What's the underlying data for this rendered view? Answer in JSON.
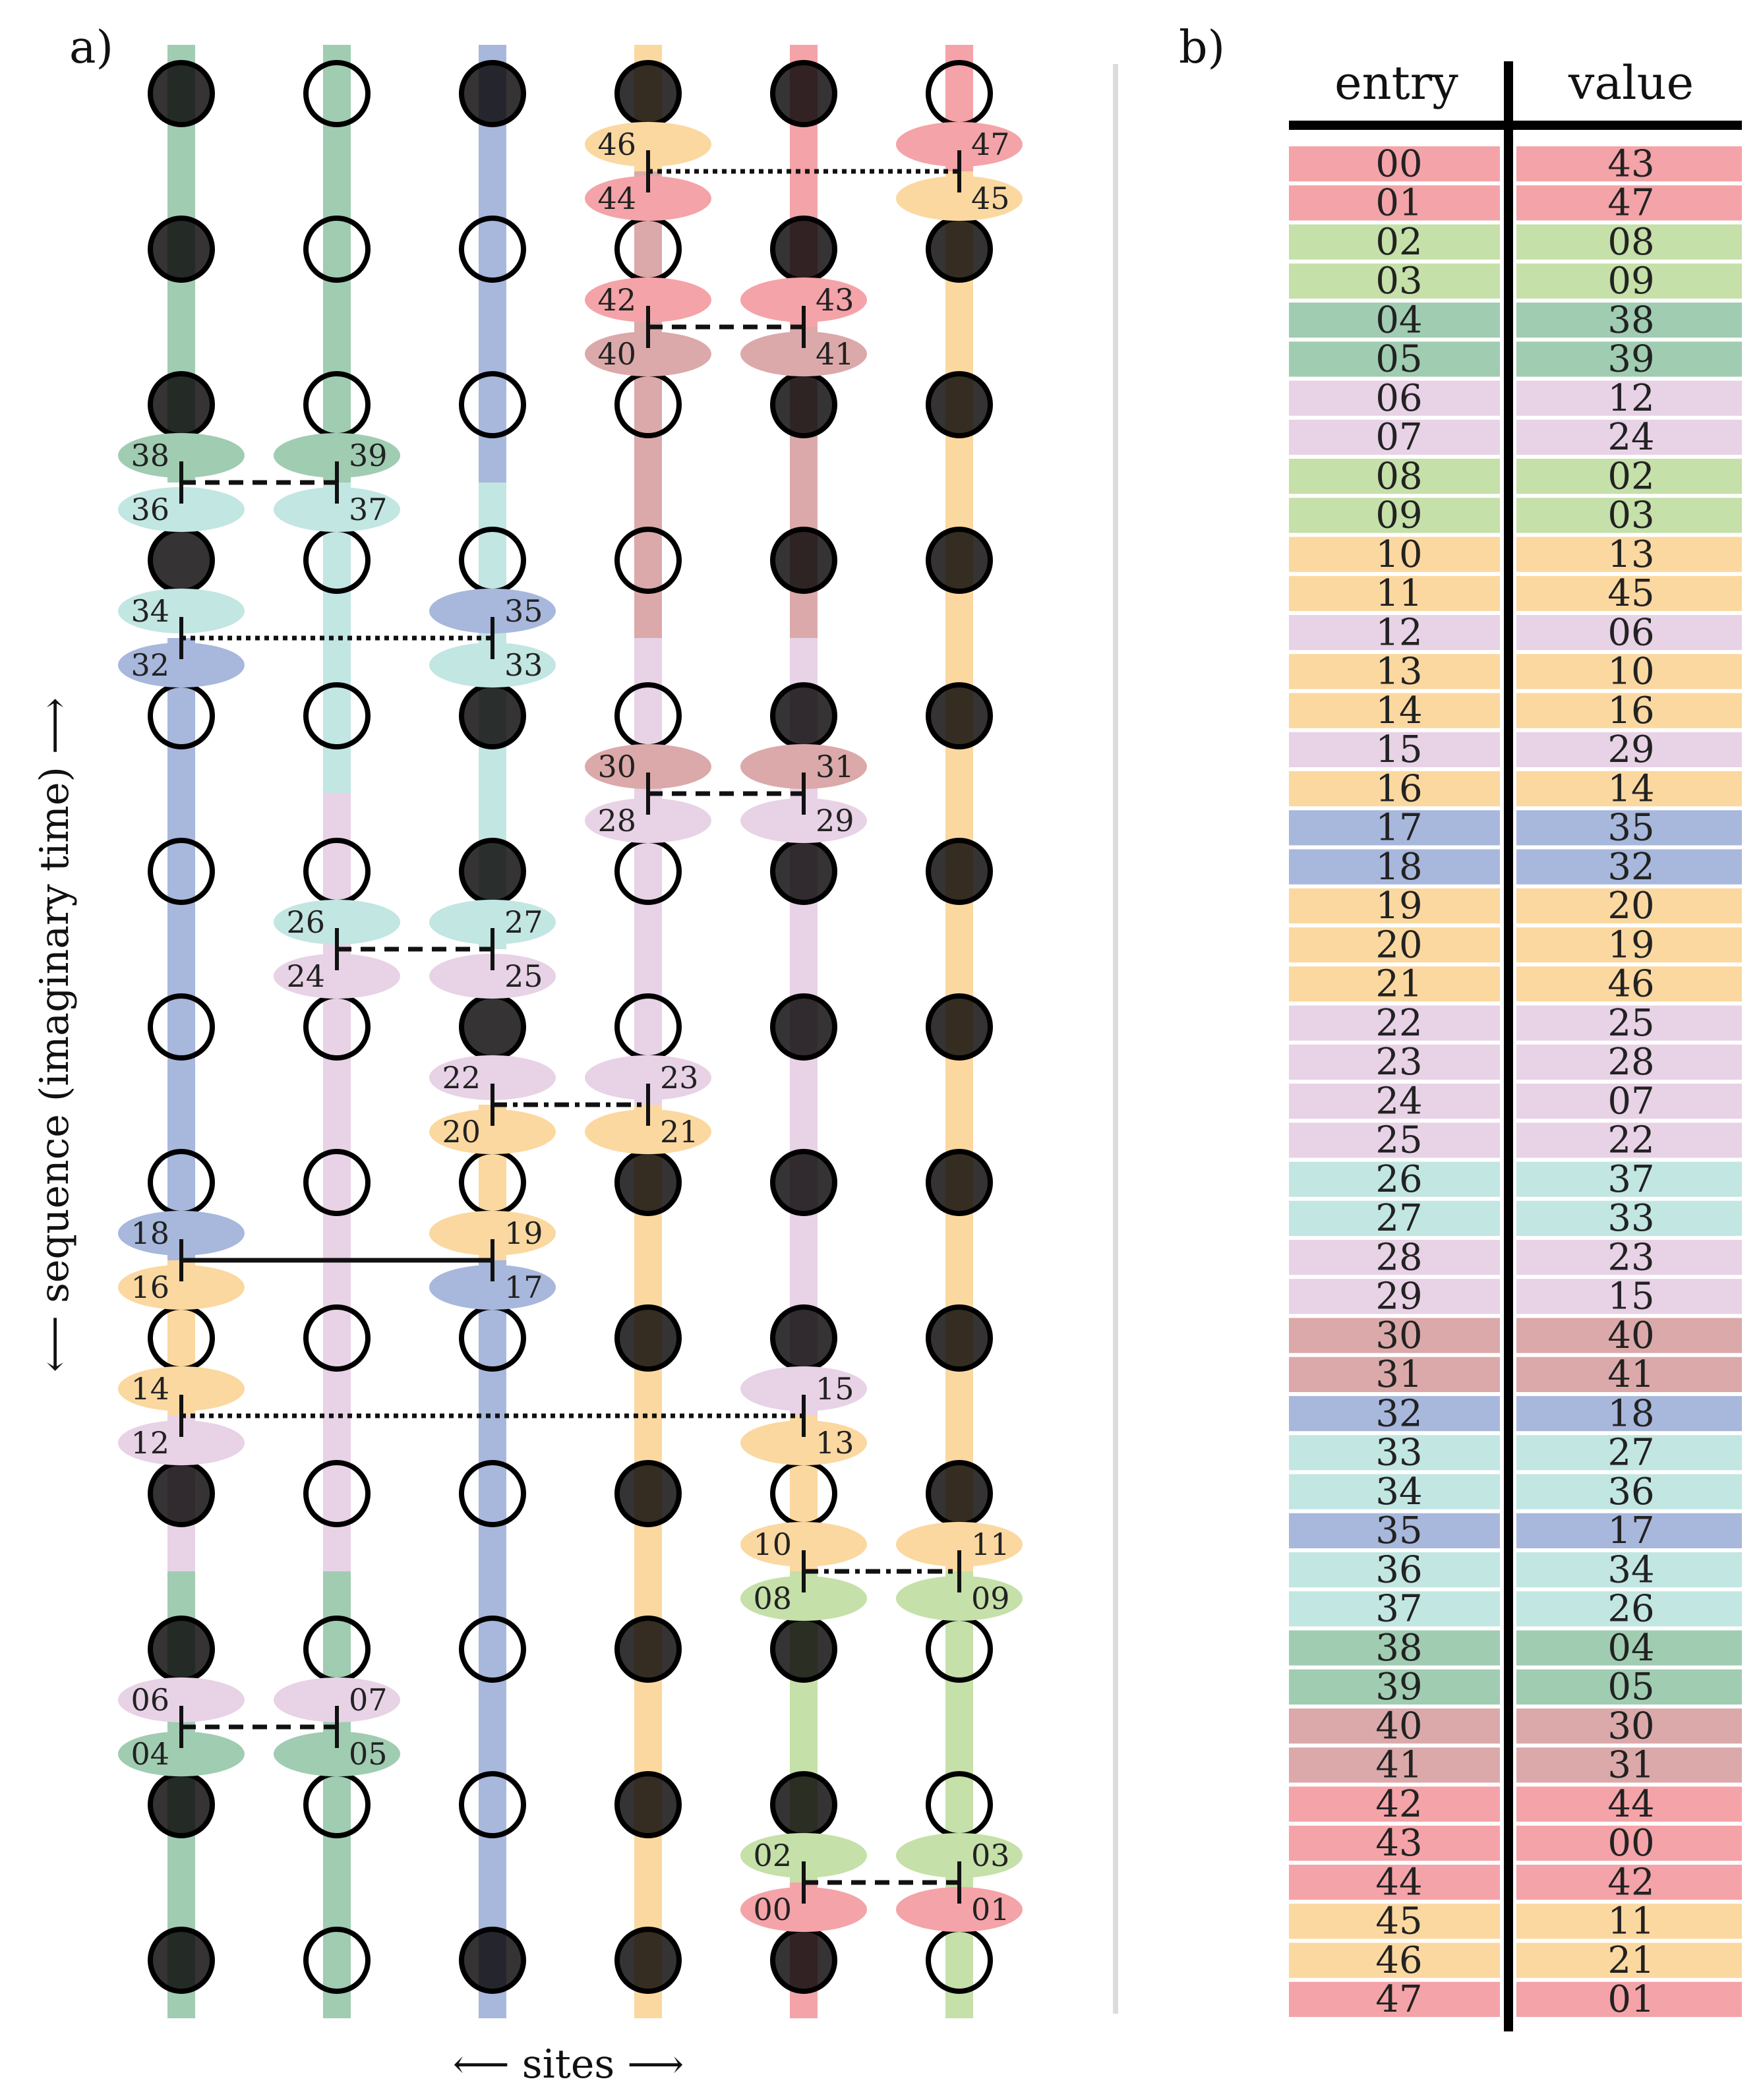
{
  "panels": {
    "a_label": "a)",
    "b_label": "b)"
  },
  "axes": {
    "y_label": "⟵ sequence (imaginary time) ⟶",
    "x_label": "⟵ sites ⟶"
  },
  "table": {
    "header_entry": "entry",
    "header_value": "value",
    "rows": [
      {
        "entry": "00",
        "value": "43",
        "color": "#f4a3a8"
      },
      {
        "entry": "01",
        "value": "47",
        "color": "#f4a3a8"
      },
      {
        "entry": "02",
        "value": "08",
        "color": "#c5e0a8"
      },
      {
        "entry": "03",
        "value": "09",
        "color": "#c5e0a8"
      },
      {
        "entry": "04",
        "value": "38",
        "color": "#a0ccb2"
      },
      {
        "entry": "05",
        "value": "39",
        "color": "#a0ccb2"
      },
      {
        "entry": "06",
        "value": "12",
        "color": "#e8d2e6"
      },
      {
        "entry": "07",
        "value": "24",
        "color": "#e8d2e6"
      },
      {
        "entry": "08",
        "value": "02",
        "color": "#c5e0a8"
      },
      {
        "entry": "09",
        "value": "03",
        "color": "#c5e0a8"
      },
      {
        "entry": "10",
        "value": "13",
        "color": "#fbd8a0"
      },
      {
        "entry": "11",
        "value": "45",
        "color": "#fbd8a0"
      },
      {
        "entry": "12",
        "value": "06",
        "color": "#e8d2e6"
      },
      {
        "entry": "13",
        "value": "10",
        "color": "#fbd8a0"
      },
      {
        "entry": "14",
        "value": "16",
        "color": "#fbd8a0"
      },
      {
        "entry": "15",
        "value": "29",
        "color": "#e8d2e6"
      },
      {
        "entry": "16",
        "value": "14",
        "color": "#fbd8a0"
      },
      {
        "entry": "17",
        "value": "35",
        "color": "#a8b7dc"
      },
      {
        "entry": "18",
        "value": "32",
        "color": "#a8b7dc"
      },
      {
        "entry": "19",
        "value": "20",
        "color": "#fbd8a0"
      },
      {
        "entry": "20",
        "value": "19",
        "color": "#fbd8a0"
      },
      {
        "entry": "21",
        "value": "46",
        "color": "#fbd8a0"
      },
      {
        "entry": "22",
        "value": "25",
        "color": "#e8d2e6"
      },
      {
        "entry": "23",
        "value": "28",
        "color": "#e8d2e6"
      },
      {
        "entry": "24",
        "value": "07",
        "color": "#e8d2e6"
      },
      {
        "entry": "25",
        "value": "22",
        "color": "#e8d2e6"
      },
      {
        "entry": "26",
        "value": "37",
        "color": "#c2e6e2"
      },
      {
        "entry": "27",
        "value": "33",
        "color": "#c2e6e2"
      },
      {
        "entry": "28",
        "value": "23",
        "color": "#e8d2e6"
      },
      {
        "entry": "29",
        "value": "15",
        "color": "#e8d2e6"
      },
      {
        "entry": "30",
        "value": "40",
        "color": "#dba9aa"
      },
      {
        "entry": "31",
        "value": "41",
        "color": "#dba9aa"
      },
      {
        "entry": "32",
        "value": "18",
        "color": "#a8b7dc"
      },
      {
        "entry": "33",
        "value": "27",
        "color": "#c2e6e2"
      },
      {
        "entry": "34",
        "value": "36",
        "color": "#c2e6e2"
      },
      {
        "entry": "35",
        "value": "17",
        "color": "#a8b7dc"
      },
      {
        "entry": "36",
        "value": "34",
        "color": "#c2e6e2"
      },
      {
        "entry": "37",
        "value": "26",
        "color": "#c2e6e2"
      },
      {
        "entry": "38",
        "value": "04",
        "color": "#a0ccb2"
      },
      {
        "entry": "39",
        "value": "05",
        "color": "#a0ccb2"
      },
      {
        "entry": "40",
        "value": "30",
        "color": "#dba9aa"
      },
      {
        "entry": "41",
        "value": "31",
        "color": "#dba9aa"
      },
      {
        "entry": "42",
        "value": "44",
        "color": "#f4a3a8"
      },
      {
        "entry": "43",
        "value": "00",
        "color": "#f4a3a8"
      },
      {
        "entry": "44",
        "value": "42",
        "color": "#f4a3a8"
      },
      {
        "entry": "45",
        "value": "11",
        "color": "#fbd8a0"
      },
      {
        "entry": "46",
        "value": "21",
        "color": "#fbd8a0"
      },
      {
        "entry": "47",
        "value": "01",
        "color": "#f4a3a8"
      }
    ]
  },
  "diagram": {
    "colors": {
      "red": "#f4a3a8",
      "green_dark": "#a0ccb2",
      "green_light": "#c5e0a8",
      "blue": "#a8b7dc",
      "orange": "#fbd8a0",
      "pink": "#e8d2e6",
      "teal": "#c2e6e2",
      "rose": "#dba9aa"
    },
    "site_rows_top_to_bottom": [
      "FOFFFO",
      "FOOOFF",
      "FOOOFF",
      "FOOOFF",
      "OOFOFF",
      "OOFOFF",
      "OOFOFF",
      "OOOFFF",
      "OOOFFF",
      "FOOFOF",
      "FOOFFO",
      "FOOFFO",
      "FOFFFO"
    ],
    "world_lines": [
      {
        "site": 0,
        "segments": [
          [
            "green_dark",
            0,
            3
          ],
          [
            "blue",
            4,
            8
          ],
          [
            "orange",
            8,
            9
          ],
          [
            "pink",
            9,
            10
          ],
          [
            "green_dark",
            10,
            13
          ]
        ]
      },
      {
        "site": 1,
        "segments": [
          [
            "green_dark",
            0,
            3
          ],
          [
            "teal",
            3,
            5
          ],
          [
            "pink",
            5,
            10
          ],
          [
            "green_dark",
            10,
            13
          ]
        ]
      },
      {
        "site": 2,
        "segments": [
          [
            "blue",
            0,
            3
          ],
          [
            "teal",
            3,
            6
          ],
          [
            "orange",
            7,
            8
          ],
          [
            "blue",
            8,
            13
          ]
        ]
      },
      {
        "site": 3,
        "segments": [
          [
            "orange",
            0,
            1
          ],
          [
            "rose",
            1,
            4
          ],
          [
            "pink",
            4,
            7
          ],
          [
            "orange",
            7,
            13
          ]
        ]
      },
      {
        "site": 4,
        "segments": [
          [
            "red",
            0,
            2
          ],
          [
            "rose",
            2,
            4
          ],
          [
            "pink",
            4,
            9
          ],
          [
            "orange",
            9,
            10
          ],
          [
            "green_light",
            10,
            12
          ],
          [
            "red",
            12,
            13
          ]
        ]
      },
      {
        "site": 5,
        "segments": [
          [
            "red",
            0,
            1
          ],
          [
            "orange",
            1,
            10
          ],
          [
            "green_light",
            10,
            13
          ]
        ]
      }
    ],
    "vertices": [
      {
        "left": "46",
        "right": "47",
        "below_left": "44",
        "below_right": "45",
        "sites": [
          3,
          5
        ],
        "gap": 0,
        "line": "dotted",
        "colors": [
          "orange",
          "red",
          "red",
          "orange"
        ]
      },
      {
        "left": "42",
        "right": "43",
        "below_left": "40",
        "below_right": "41",
        "sites": [
          3,
          4
        ],
        "gap": 1,
        "line": "dashed",
        "colors": [
          "red",
          "red",
          "rose",
          "rose"
        ]
      },
      {
        "left": "38",
        "right": "39",
        "below_left": "36",
        "below_right": "37",
        "sites": [
          0,
          1
        ],
        "gap": 2,
        "line": "dashed",
        "colors": [
          "green_dark",
          "green_dark",
          "teal",
          "teal"
        ]
      },
      {
        "left": "34",
        "right": "35",
        "below_left": "32",
        "below_right": "33",
        "sites": [
          0,
          2
        ],
        "gap": 3,
        "line": "dotted",
        "colors": [
          "teal",
          "blue",
          "blue",
          "teal"
        ]
      },
      {
        "left": "30",
        "right": "31",
        "below_left": "28",
        "below_right": "29",
        "sites": [
          3,
          4
        ],
        "gap": 4,
        "line": "dashed",
        "colors": [
          "rose",
          "rose",
          "pink",
          "pink"
        ]
      },
      {
        "left": "26",
        "right": "27",
        "below_left": "24",
        "below_right": "25",
        "sites": [
          1,
          2
        ],
        "gap": 5,
        "line": "dashed",
        "colors": [
          "teal",
          "teal",
          "pink",
          "pink"
        ]
      },
      {
        "left": "22",
        "right": "23",
        "below_left": "20",
        "below_right": "21",
        "sites": [
          2,
          3
        ],
        "gap": 6,
        "line": "dashdot",
        "colors": [
          "pink",
          "pink",
          "orange",
          "orange"
        ]
      },
      {
        "left": "18",
        "right": "19",
        "below_left": "16",
        "below_right": "17",
        "sites": [
          0,
          2
        ],
        "gap": 7,
        "line": "solid",
        "colors": [
          "blue",
          "orange",
          "orange",
          "blue"
        ]
      },
      {
        "left": "14",
        "right": "15",
        "below_left": "12",
        "below_right": "13",
        "sites": [
          0,
          4
        ],
        "gap": 8,
        "line": "dotted",
        "colors": [
          "orange",
          "pink",
          "pink",
          "orange"
        ]
      },
      {
        "left": "10",
        "right": "11",
        "below_left": "08",
        "below_right": "09",
        "sites": [
          4,
          5
        ],
        "gap": 9,
        "line": "dashdot",
        "colors": [
          "orange",
          "orange",
          "green_light",
          "green_light"
        ]
      },
      {
        "left": "06",
        "right": "07",
        "below_left": "04",
        "below_right": "05",
        "sites": [
          0,
          1
        ],
        "gap": 10,
        "line": "dashed",
        "colors": [
          "pink",
          "pink",
          "green_dark",
          "green_dark"
        ]
      },
      {
        "left": "02",
        "right": "03",
        "below_left": "00",
        "below_right": "01",
        "sites": [
          4,
          5
        ],
        "gap": 11,
        "line": "dashed",
        "colors": [
          "green_light",
          "green_light",
          "red",
          "red"
        ]
      }
    ]
  }
}
